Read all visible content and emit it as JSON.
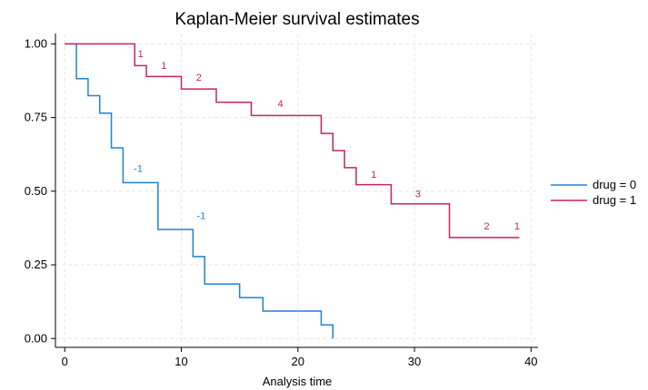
{
  "chart_data": {
    "type": "line",
    "step": true,
    "title": "Kaplan-Meier survival estimates",
    "xlabel": "Analysis time",
    "ylabel": "",
    "xlim": [
      0,
      40
    ],
    "ylim": [
      0,
      1
    ],
    "xticks": [
      0,
      10,
      20,
      30,
      40
    ],
    "yticks": [
      0.0,
      0.25,
      0.5,
      0.75,
      1.0
    ],
    "xtick_labels": [
      "0",
      "10",
      "20",
      "30",
      "40"
    ],
    "ytick_labels": [
      "0.00",
      "0.25",
      "0.50",
      "0.75",
      "1.00"
    ],
    "grid": true,
    "legend": "right",
    "series": [
      {
        "name": "drug = 0",
        "color": "#1f82d8",
        "x": [
          0,
          1,
          2,
          3,
          4,
          5,
          8,
          11,
          12,
          15,
          17,
          22,
          23
        ],
        "y": [
          1.0,
          0.882,
          0.824,
          0.765,
          0.647,
          0.529,
          0.37,
          0.278,
          0.185,
          0.139,
          0.093,
          0.046,
          0.0
        ],
        "end_x": 23,
        "annotations": [
          {
            "x": 6.3,
            "y": 0.565,
            "text": "-1"
          },
          {
            "x": 11.7,
            "y": 0.405,
            "text": "-1"
          }
        ]
      },
      {
        "name": "drug = 1",
        "color": "#c8245a",
        "x": [
          0,
          6,
          7,
          10,
          13,
          16,
          22,
          23,
          24,
          25,
          28,
          33
        ],
        "y": [
          1.0,
          0.926,
          0.889,
          0.847,
          0.802,
          0.757,
          0.696,
          0.638,
          0.58,
          0.522,
          0.457,
          0.343
        ],
        "end_x": 39,
        "annotations": [
          {
            "x": 6.5,
            "y": 0.955,
            "text": "1"
          },
          {
            "x": 8.5,
            "y": 0.915,
            "text": "1"
          },
          {
            "x": 11.5,
            "y": 0.875,
            "text": "2"
          },
          {
            "x": 18.5,
            "y": 0.785,
            "text": "4"
          },
          {
            "x": 26.5,
            "y": 0.545,
            "text": "1"
          },
          {
            "x": 30.3,
            "y": 0.48,
            "text": "3"
          },
          {
            "x": 36.2,
            "y": 0.37,
            "text": "2"
          },
          {
            "x": 38.8,
            "y": 0.37,
            "text": "1"
          }
        ]
      }
    ]
  }
}
